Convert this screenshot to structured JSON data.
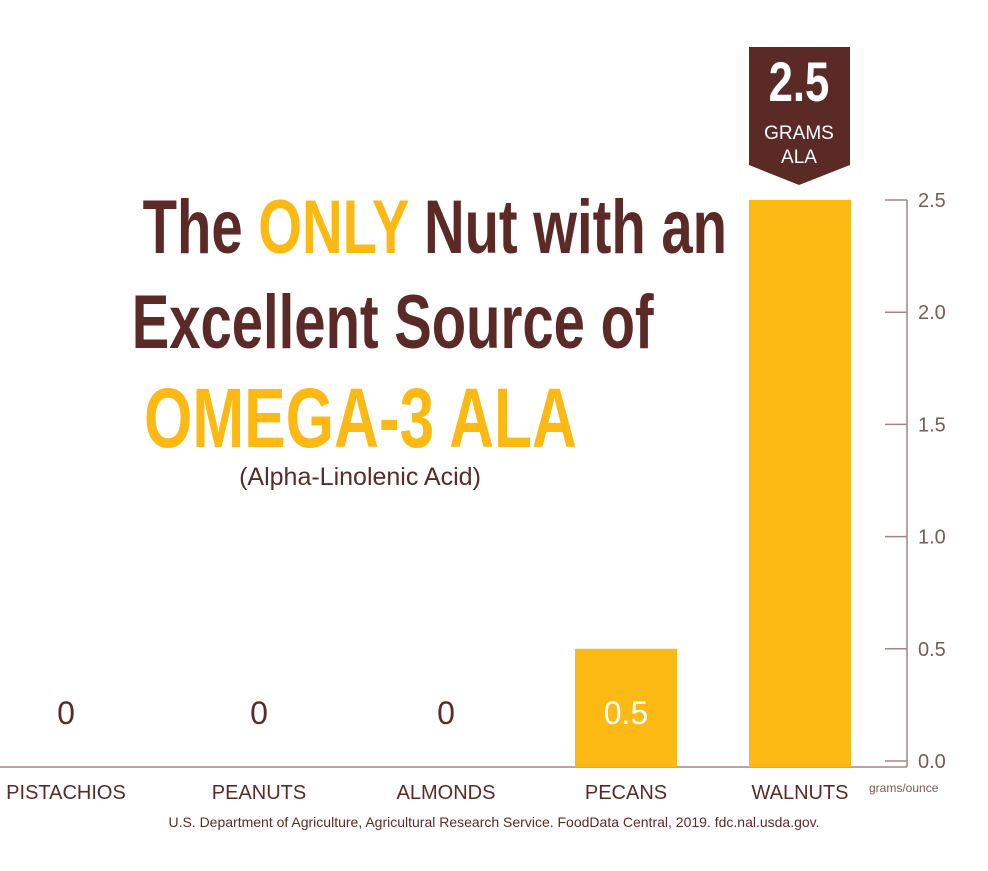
{
  "title": {
    "line1_pre": "The",
    "line1_highlight": "ONLY",
    "line1_post": "Nut with an",
    "line2": "Excellent Source of",
    "line3": "OMEGA-3 ALA",
    "line4": "(Alpha-Linolenic Acid)"
  },
  "callout": {
    "value": "2.5",
    "unit_line1": "GRAMS",
    "unit_line2": "ALA"
  },
  "source": "U.S. Department of Agriculture, Agricultural Research Service. FoodData Central, 2019. fdc.nal.usda.gov.",
  "colors": {
    "brown": "#5b2a26",
    "gold": "#fdb913",
    "axis": "#a08784"
  },
  "chart_data": {
    "type": "bar",
    "title": "The ONLY Nut with an Excellent Source of OMEGA-3 ALA (Alpha-Linolenic Acid)",
    "categories": [
      "PISTACHIOS",
      "PEANUTS",
      "ALMONDS",
      "PECANS",
      "WALNUTS"
    ],
    "values": [
      0,
      0,
      0,
      0.5,
      2.5
    ],
    "value_labels": [
      "0",
      "0",
      "0",
      "0.5",
      ""
    ],
    "ylabel": "grams/ounce",
    "ylim": [
      0,
      2.5
    ],
    "yticks": [
      "0.0",
      "0.5",
      "1.0",
      "1.5",
      "2.0",
      "2.5"
    ],
    "y_axis_side": "right",
    "grid": false
  }
}
